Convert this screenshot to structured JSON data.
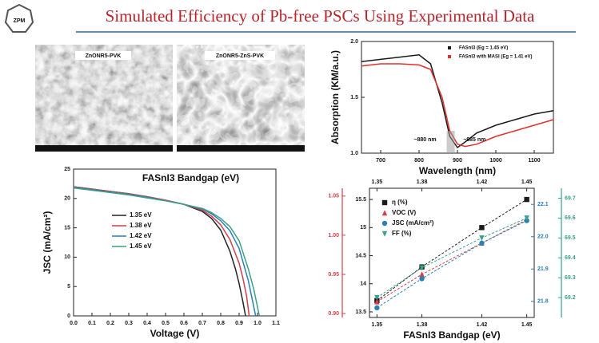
{
  "title": "Simulated Efficiency of Pb-free PSCs Using Experimental Data",
  "logo": "ZPM",
  "images": [
    {
      "label": "ZnONR5-PVK"
    },
    {
      "label": "ZnONR5-ZnS-PVK"
    }
  ],
  "chart_data": [
    {
      "type": "line",
      "xlabel": "Wavelength (nm)",
      "ylabel": "Absorption (KM/a.u.)",
      "annotations": [
        "~880 nm",
        "~885 nm"
      ],
      "xlim": [
        650,
        1150
      ],
      "xticks": [
        700,
        800,
        900,
        1000,
        1100
      ],
      "ylim": [
        1.0,
        2.0
      ],
      "yticks": [
        {
          "value": 2.0,
          "label": "2.0"
        },
        {
          "value": 1.5,
          "label": "1.5"
        },
        {
          "value": 1.0,
          "label": "1.0"
        }
      ],
      "x": [
        650,
        700,
        750,
        800,
        830,
        860,
        880,
        900,
        920,
        950,
        1000,
        1050,
        1100,
        1150
      ],
      "series": [
        {
          "name": "FASnI3 (Eg = 1.45 eV)",
          "color": "#1a1a1a",
          "values": [
            1.82,
            1.84,
            1.86,
            1.88,
            1.8,
            1.45,
            1.15,
            1.05,
            1.1,
            1.18,
            1.25,
            1.3,
            1.35,
            1.38
          ]
        },
        {
          "name": "FASnI3 with MASI (Eg = 1.41 eV)",
          "color": "#e0302c",
          "values": [
            1.78,
            1.8,
            1.8,
            1.79,
            1.75,
            1.5,
            1.2,
            1.08,
            1.06,
            1.08,
            1.15,
            1.2,
            1.25,
            1.3
          ]
        }
      ]
    },
    {
      "type": "line",
      "title": "FASnI3 Bandgap (eV)",
      "xlabel": "Voltage (V)",
      "ylabel": "JSC (mA/cm²)",
      "xlim": [
        0,
        1.1
      ],
      "xticks": [
        {
          "value": 0,
          "label": "0.0"
        },
        0.1,
        0.2,
        0.3,
        0.4,
        0.5,
        0.6,
        0.7,
        0.8,
        0.9,
        {
          "value": 1,
          "label": "1.0"
        },
        1.1
      ],
      "ylim": [
        0,
        25
      ],
      "yticks": [
        0,
        5,
        10,
        15,
        20,
        25
      ],
      "series": [
        {
          "name": "1.35 eV",
          "color": "#222222",
          "x": [
            0,
            0.1,
            0.2,
            0.3,
            0.4,
            0.5,
            0.6,
            0.7,
            0.75,
            0.8,
            0.85,
            0.88,
            0.9,
            0.92,
            0.935
          ],
          "values": [
            22,
            21.6,
            21.2,
            20.8,
            20.3,
            19.7,
            19,
            17.8,
            16.6,
            14.6,
            11,
            8,
            5.5,
            2.5,
            0
          ]
        },
        {
          "name": "1.38 eV",
          "color": "#d0404a",
          "x": [
            0,
            0.1,
            0.2,
            0.3,
            0.4,
            0.5,
            0.6,
            0.7,
            0.75,
            0.8,
            0.85,
            0.9,
            0.92,
            0.94,
            0.955
          ],
          "values": [
            22,
            21.6,
            21.2,
            20.8,
            20.3,
            19.7,
            19,
            18,
            17,
            15.5,
            13,
            9,
            6.5,
            3.5,
            0
          ]
        },
        {
          "name": "1.42 eV",
          "color": "#2a7fb5",
          "x": [
            0,
            0.1,
            0.2,
            0.3,
            0.4,
            0.5,
            0.6,
            0.7,
            0.75,
            0.8,
            0.85,
            0.9,
            0.95,
            0.97,
            0.99
          ],
          "values": [
            21.9,
            21.5,
            21.1,
            20.7,
            20.2,
            19.6,
            19,
            18.2,
            17.4,
            16.2,
            14.5,
            11.5,
            6,
            3,
            0
          ]
        },
        {
          "name": "1.45 eV",
          "color": "#3aa08a",
          "x": [
            0,
            0.1,
            0.2,
            0.3,
            0.4,
            0.5,
            0.6,
            0.7,
            0.75,
            0.8,
            0.85,
            0.9,
            0.95,
            0.98,
            1.01
          ],
          "values": [
            21.8,
            21.4,
            21,
            20.6,
            20.1,
            19.6,
            19,
            18.3,
            17.6,
            16.6,
            15.2,
            12.8,
            8,
            4.5,
            0
          ]
        }
      ]
    },
    {
      "type": "scatter",
      "xlabel": "FASnI3 Bandgap (eV)",
      "xlim": [
        1.345,
        1.455
      ],
      "xticks": [
        1.35,
        1.38,
        1.42,
        1.45
      ],
      "x": [
        1.35,
        1.38,
        1.42,
        1.45
      ],
      "ylim": [
        13.4,
        15.7
      ],
      "yticks": [
        13.5,
        14,
        14.5,
        15,
        15.5
      ],
      "y2lim": [
        0.895,
        1.06
      ],
      "y2ticks": [
        {
          "value": 0.9,
          "label": "0.90"
        },
        0.95,
        {
          "value": 1,
          "label": "1.00"
        },
        1.05
      ],
      "y3lim": [
        21.75,
        22.15
      ],
      "y3ticks": [
        21.8,
        21.9,
        {
          "value": 22,
          "label": "22.0"
        },
        22.1
      ],
      "y4lim": [
        69.1,
        69.75
      ],
      "y4ticks": [
        69.2,
        69.3,
        69.4,
        69.5,
        69.6,
        69.7
      ],
      "series": [
        {
          "name": "η (%)",
          "color": "#1a1a1a",
          "marker": "square",
          "axis": "y",
          "values": [
            13.7,
            14.3,
            15.0,
            15.5
          ]
        },
        {
          "name": "VOC (V)",
          "color": "#d0404a",
          "marker": "triangle",
          "axis": "y2",
          "values": [
            0.915,
            0.95,
            0.99,
            1.02
          ]
        },
        {
          "name": "JSC (mA/cm²)",
          "color": "#2a7fb5",
          "marker": "circle",
          "axis": "y3",
          "values": [
            21.78,
            21.87,
            21.98,
            22.05
          ]
        },
        {
          "name": "FF (%)",
          "color": "#3aa08a",
          "marker": "triangle-down",
          "axis": "y4",
          "values": [
            69.2,
            69.35,
            69.5,
            69.6
          ]
        }
      ]
    }
  ]
}
